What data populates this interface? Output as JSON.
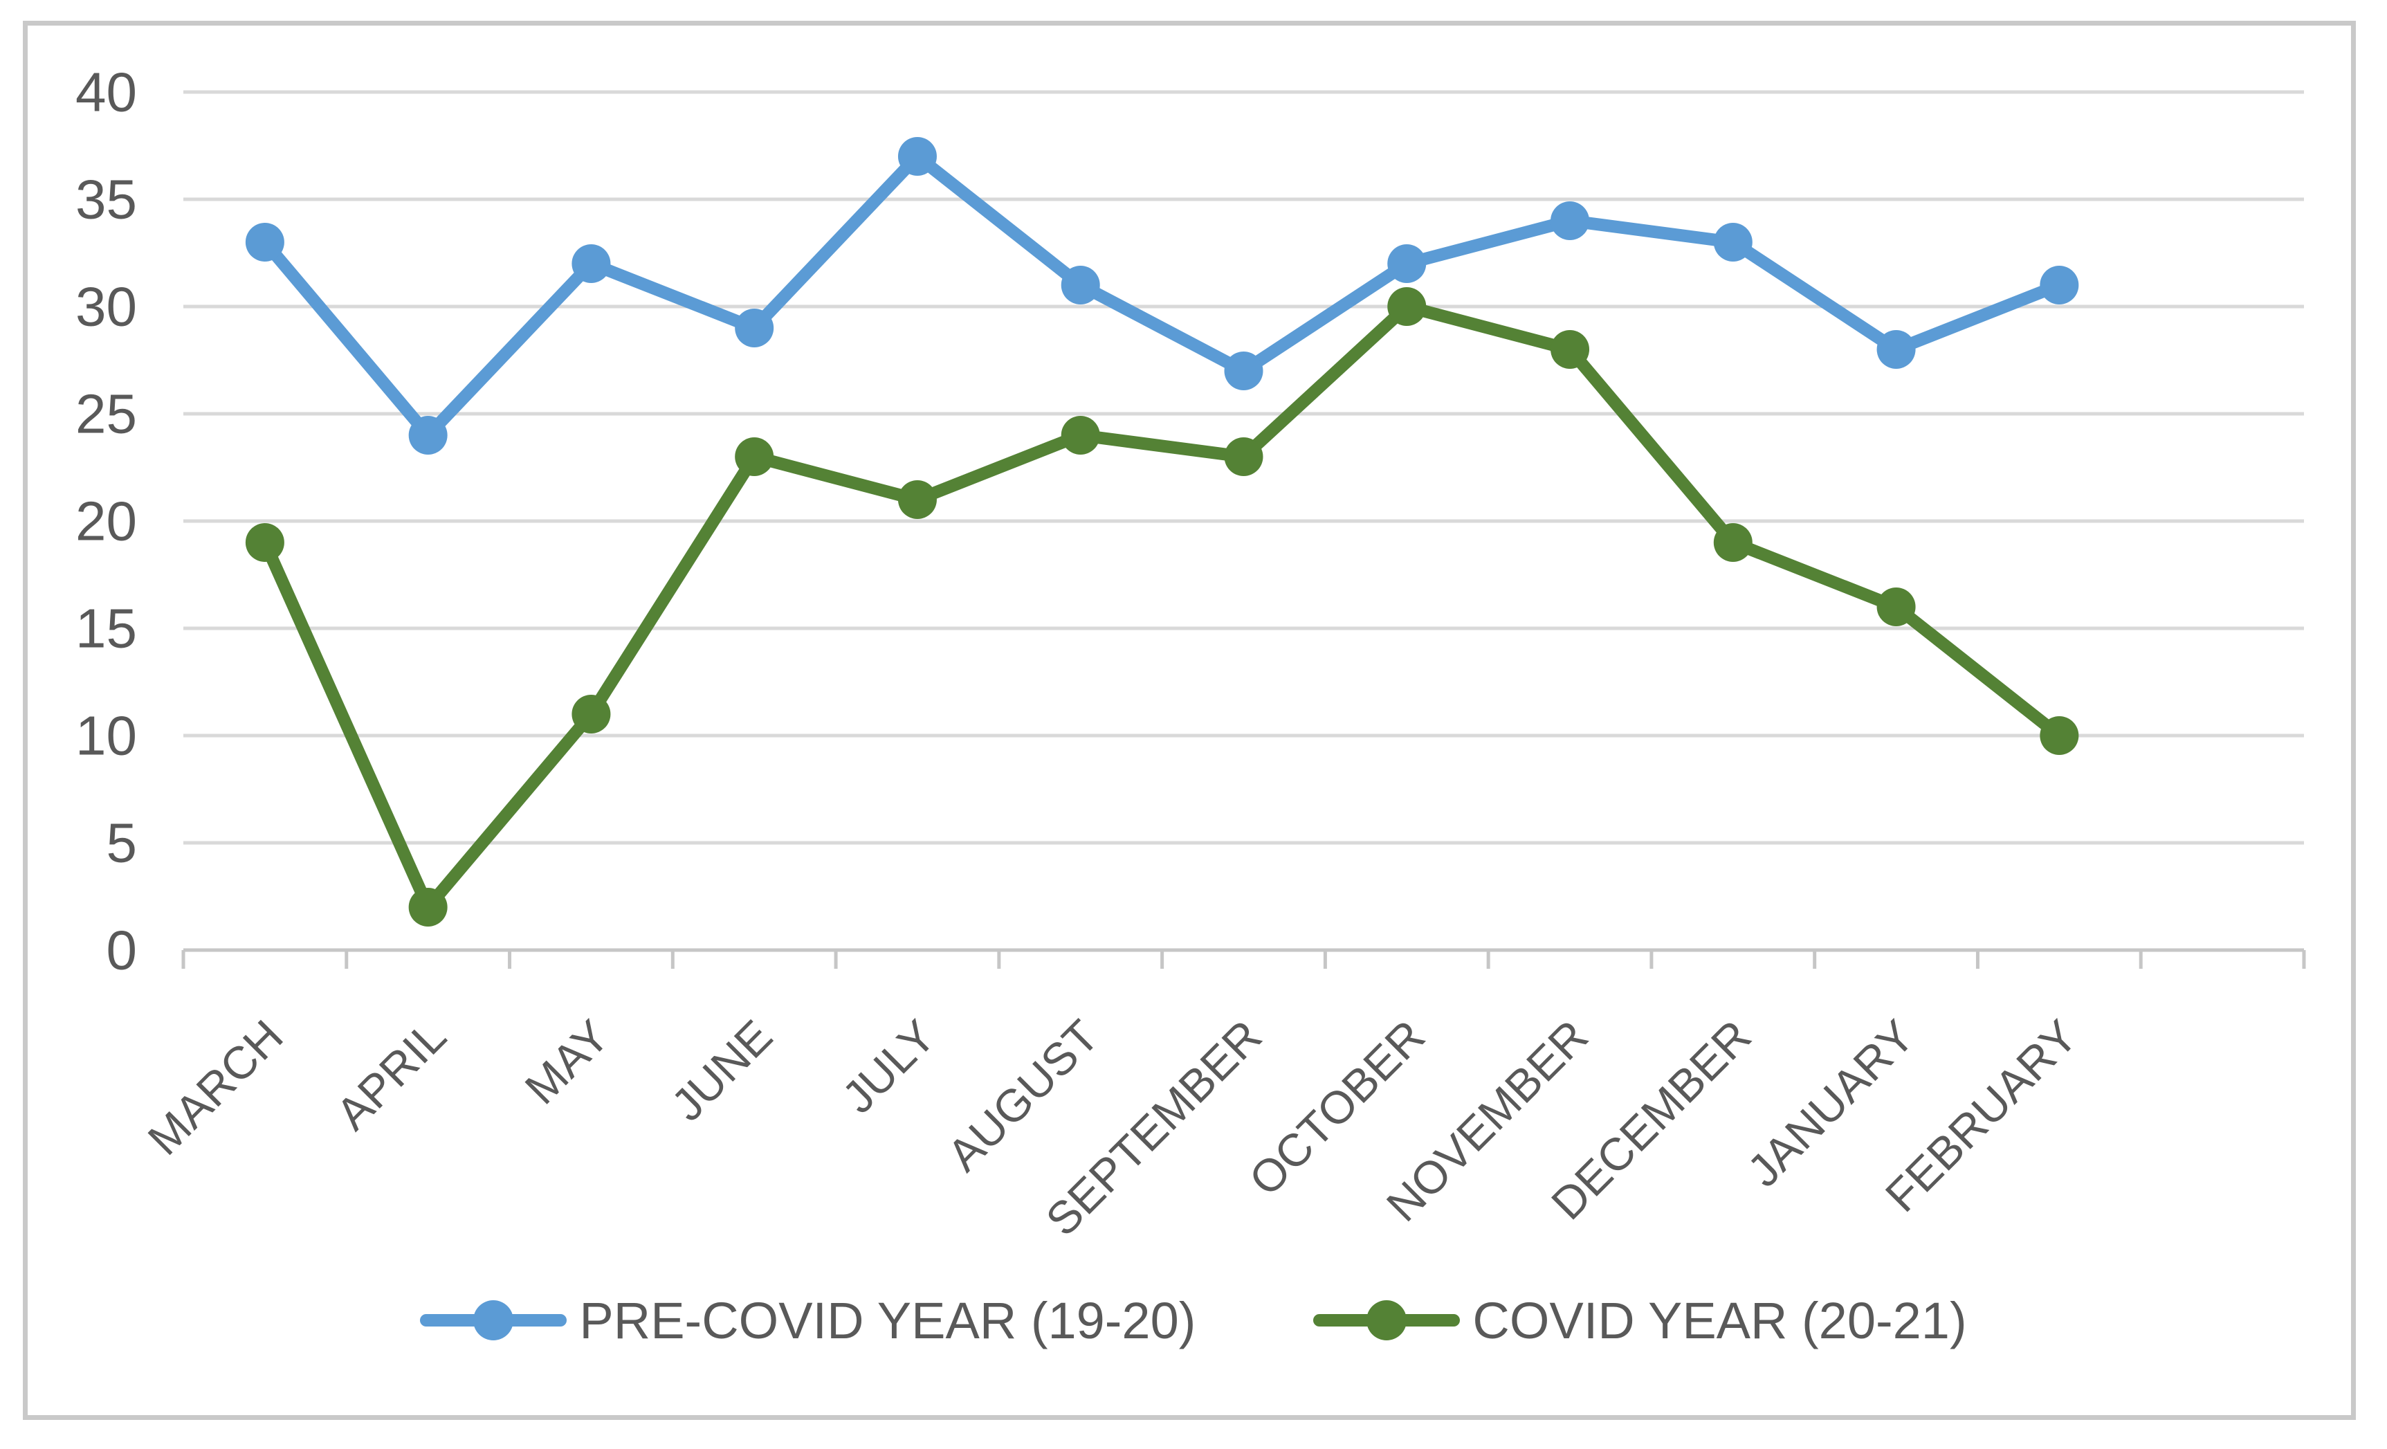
{
  "chart_data": {
    "type": "line",
    "categories": [
      "MARCH",
      "APRIL",
      "MAY",
      "JUNE",
      "JULY",
      "AUGUST",
      "SEPTEMBER",
      "OCTOBER",
      "NOVEMBER",
      "DECEMBER",
      "JANUARY",
      "FEBRUARY"
    ],
    "series": [
      {
        "name": "PRE-COVID YEAR (19-20)",
        "color": "#5B9BD5",
        "values": [
          33,
          24,
          32,
          29,
          37,
          31,
          27,
          32,
          34,
          33,
          28,
          31
        ]
      },
      {
        "name": "COVID YEAR (20-21)",
        "color": "#548235",
        "values": [
          19,
          2,
          11,
          23,
          21,
          24,
          23,
          30,
          28,
          19,
          16,
          10
        ]
      }
    ],
    "title": "",
    "xlabel": "",
    "ylabel": "",
    "ylim": [
      0,
      40
    ],
    "ytick_step": 5,
    "y_tick_labels": [
      "0",
      "5",
      "10",
      "15",
      "20",
      "25",
      "30",
      "35",
      "40"
    ],
    "grid": true,
    "legend_position": "bottom",
    "marker_style": "circle"
  },
  "colors": {
    "gridline": "#D9D9D9",
    "axis_line": "#C6C6C6",
    "tick_label": "#595959",
    "chart_border": "#C9C9C9",
    "background": "#FFFFFF"
  }
}
